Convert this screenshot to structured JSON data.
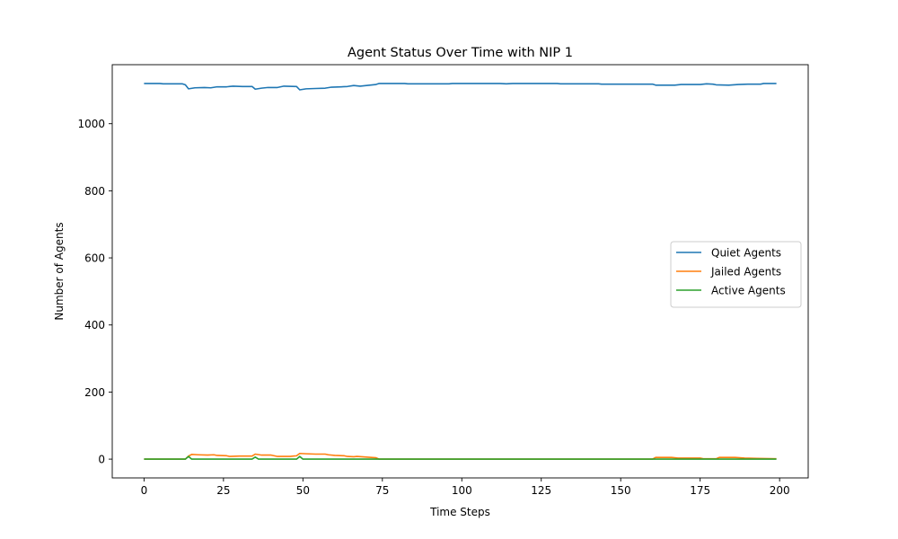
{
  "chart_data": {
    "type": "line",
    "title": "Agent Status Over Time with NIP 1",
    "xlabel": "Time Steps",
    "ylabel": "Number of Agents",
    "xlim": [
      -10,
      209
    ],
    "ylim": [
      -56,
      1176
    ],
    "xticks": [
      0,
      25,
      50,
      75,
      100,
      125,
      150,
      175,
      200
    ],
    "yticks": [
      0,
      200,
      400,
      600,
      800,
      1000
    ],
    "grid": false,
    "legend_position": "center-right",
    "series": [
      {
        "name": "Quiet Agents",
        "color": "#1f77b4",
        "points": [
          [
            0,
            1120
          ],
          [
            5,
            1120
          ],
          [
            6,
            1119
          ],
          [
            12,
            1119
          ],
          [
            13,
            1116
          ],
          [
            14,
            1104
          ],
          [
            16,
            1107
          ],
          [
            19,
            1108
          ],
          [
            21,
            1107
          ],
          [
            23,
            1110
          ],
          [
            26,
            1110
          ],
          [
            28,
            1112
          ],
          [
            31,
            1111
          ],
          [
            34,
            1111
          ],
          [
            35,
            1103
          ],
          [
            37,
            1106
          ],
          [
            39,
            1108
          ],
          [
            42,
            1108
          ],
          [
            44,
            1112
          ],
          [
            48,
            1111
          ],
          [
            49,
            1101
          ],
          [
            51,
            1104
          ],
          [
            54,
            1105
          ],
          [
            57,
            1106
          ],
          [
            59,
            1109
          ],
          [
            62,
            1110
          ],
          [
            64,
            1111
          ],
          [
            66,
            1114
          ],
          [
            68,
            1112
          ],
          [
            70,
            1114
          ],
          [
            73,
            1117
          ],
          [
            74,
            1120
          ],
          [
            82,
            1120
          ],
          [
            83,
            1119
          ],
          [
            96,
            1119
          ],
          [
            97,
            1120
          ],
          [
            112,
            1120
          ],
          [
            114,
            1119
          ],
          [
            116,
            1120
          ],
          [
            130,
            1120
          ],
          [
            131,
            1119
          ],
          [
            143,
            1119
          ],
          [
            144,
            1118
          ],
          [
            160,
            1118
          ],
          [
            161,
            1115
          ],
          [
            167,
            1115
          ],
          [
            169,
            1117
          ],
          [
            175,
            1117
          ],
          [
            177,
            1119
          ],
          [
            179,
            1118
          ],
          [
            180,
            1116
          ],
          [
            184,
            1115
          ],
          [
            187,
            1117
          ],
          [
            190,
            1118
          ],
          [
            194,
            1118
          ],
          [
            195,
            1120
          ],
          [
            199,
            1120
          ]
        ]
      },
      {
        "name": "Jailed Agents",
        "color": "#ff7f0e",
        "points": [
          [
            0,
            0
          ],
          [
            13,
            0
          ],
          [
            14,
            9
          ],
          [
            15,
            14
          ],
          [
            17,
            13
          ],
          [
            20,
            12
          ],
          [
            22,
            13
          ],
          [
            23,
            11
          ],
          [
            26,
            10
          ],
          [
            27,
            8
          ],
          [
            30,
            9
          ],
          [
            34,
            9
          ],
          [
            35,
            15
          ],
          [
            37,
            12
          ],
          [
            40,
            12
          ],
          [
            42,
            8
          ],
          [
            46,
            8
          ],
          [
            47,
            9
          ],
          [
            48,
            10
          ],
          [
            49,
            17
          ],
          [
            51,
            16
          ],
          [
            54,
            15
          ],
          [
            57,
            15
          ],
          [
            58,
            13
          ],
          [
            60,
            11
          ],
          [
            63,
            10
          ],
          [
            64,
            8
          ],
          [
            66,
            7
          ],
          [
            67,
            8
          ],
          [
            70,
            6
          ],
          [
            73,
            4
          ],
          [
            74,
            0
          ],
          [
            160,
            0
          ],
          [
            161,
            5
          ],
          [
            166,
            5
          ],
          [
            168,
            3
          ],
          [
            175,
            3
          ],
          [
            176,
            1
          ],
          [
            180,
            1
          ],
          [
            181,
            5
          ],
          [
            186,
            5
          ],
          [
            189,
            3
          ],
          [
            193,
            2
          ],
          [
            199,
            1
          ]
        ]
      },
      {
        "name": "Active Agents",
        "color": "#2ca02c",
        "points": [
          [
            0,
            0
          ],
          [
            13,
            0
          ],
          [
            14,
            8
          ],
          [
            15,
            0
          ],
          [
            34,
            0
          ],
          [
            35,
            6
          ],
          [
            36,
            0
          ],
          [
            48,
            0
          ],
          [
            49,
            8
          ],
          [
            50,
            0
          ],
          [
            199,
            0
          ]
        ]
      }
    ]
  }
}
